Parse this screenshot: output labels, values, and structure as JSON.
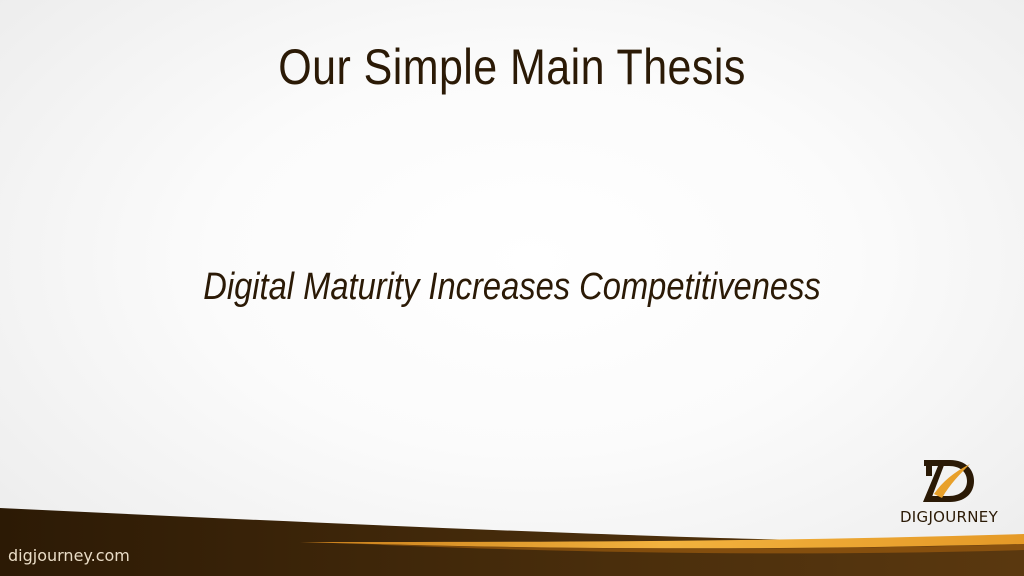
{
  "slide": {
    "title": "Our Simple Main Thesis",
    "thesis": "Digital Maturity Increases Competitiveness",
    "footer_url": "digjourney.com",
    "logo_text": "DIGJOURNEY"
  },
  "colors": {
    "text_dark": "#2b1a06",
    "footer_brown": "#3a2308",
    "accent_orange": "#e8a02a"
  }
}
